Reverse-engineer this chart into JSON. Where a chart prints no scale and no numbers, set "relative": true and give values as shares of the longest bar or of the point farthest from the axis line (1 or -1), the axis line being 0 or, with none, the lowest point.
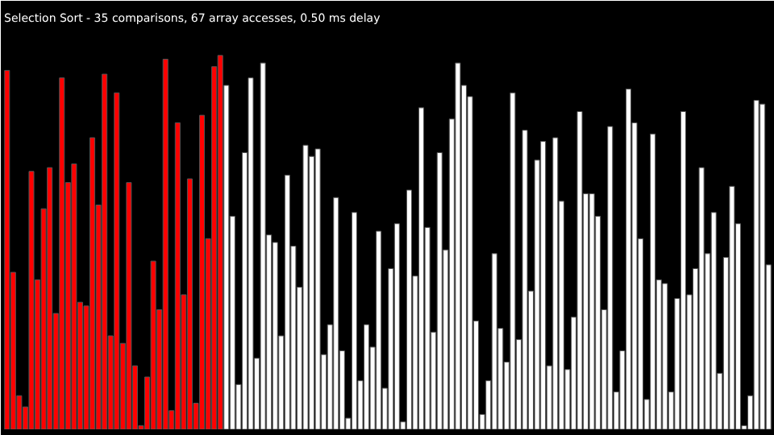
{
  "chart_data": {
    "type": "bar",
    "title": "Selection Sort - 35 comparisons, 67 array accesses, 0.50 ms delay",
    "relative": true,
    "categories": [
      null,
      null,
      null,
      null,
      null,
      null,
      null,
      null,
      null,
      null,
      null,
      null,
      null,
      null,
      null,
      null,
      null,
      null,
      null,
      null,
      null,
      null,
      null,
      null,
      null,
      null,
      null,
      null,
      null,
      null,
      null,
      null,
      null,
      null,
      null,
      null,
      null,
      null,
      null,
      null,
      null,
      null,
      null,
      null,
      null,
      null,
      null,
      null,
      null,
      null,
      null,
      null,
      null,
      null,
      null,
      null,
      null,
      null,
      null,
      null,
      null,
      null,
      null,
      null,
      null,
      null,
      null,
      null,
      null,
      null,
      null,
      null,
      null,
      null,
      null,
      null,
      null,
      null,
      null,
      null,
      null,
      null,
      null,
      null,
      null,
      null,
      null,
      null,
      null,
      null,
      null,
      null,
      null,
      null,
      null,
      null,
      null,
      null,
      null,
      null,
      null,
      null,
      null,
      null,
      null,
      null,
      null,
      null,
      null,
      null,
      null,
      null,
      null,
      null,
      null,
      null,
      null,
      null,
      null,
      null,
      null,
      null,
      null,
      null,
      null,
      null
    ],
    "values": [
      0.96,
      0.42,
      0.09,
      0.06,
      0.69,
      0.4,
      0.59,
      0.7,
      0.31,
      0.94,
      0.66,
      0.71,
      0.34,
      0.33,
      0.78,
      0.6,
      0.95,
      0.25,
      0.9,
      0.23,
      0.66,
      0.17,
      0.01,
      0.14,
      0.45,
      0.32,
      0.99,
      0.05,
      0.82,
      0.36,
      0.67,
      0.07,
      0.84,
      0.51,
      0.97,
      1,
      0.92,
      0.57,
      0.12,
      0.74,
      0.94,
      0.19,
      0.98,
      0.52,
      0.5,
      0.25,
      0.68,
      0.49,
      0.38,
      0.76,
      0.73,
      0.75,
      0.2,
      0.28,
      0.62,
      0.21,
      0.03,
      0.58,
      0.13,
      0.28,
      0.22,
      0.53,
      0.11,
      0.43,
      0.55,
      0.02,
      0.64,
      0.41,
      0.86,
      0.54,
      0.26,
      0.74,
      0.48,
      0.83,
      0.98,
      0.92,
      0.89,
      0.29,
      0.04,
      0.13,
      0.47,
      0.27,
      0.18,
      0.9,
      0.24,
      0.8,
      0.37,
      0.72,
      0.77,
      0.17,
      0.78,
      0.61,
      0.16,
      0.3,
      0.85,
      0.63,
      0.63,
      0.57,
      0.32,
      0.81,
      0.1,
      0.21,
      0.91,
      0.82,
      0.51,
      0.08,
      0.79,
      0.4,
      0.39,
      0.1,
      0.35,
      0.85,
      0.36,
      0.43,
      0.7,
      0.47,
      0.58,
      0.15,
      0.46,
      0.65,
      0.55,
      0.01,
      0.09,
      0.88,
      0.87,
      0.44
    ],
    "colors": [
      "#ff0000",
      "#ff0000",
      "#ff0000",
      "#ff0000",
      "#ff0000",
      "#ff0000",
      "#ff0000",
      "#ff0000",
      "#ff0000",
      "#ff0000",
      "#ff0000",
      "#ff0000",
      "#ff0000",
      "#ff0000",
      "#ff0000",
      "#ff0000",
      "#ff0000",
      "#ff0000",
      "#ff0000",
      "#ff0000",
      "#ff0000",
      "#ff0000",
      "#ff0000",
      "#ff0000",
      "#ff0000",
      "#ff0000",
      "#ff0000",
      "#ff0000",
      "#ff0000",
      "#ff0000",
      "#ff0000",
      "#ff0000",
      "#ff0000",
      "#ff0000",
      "#ff0000",
      "#ff0000",
      "#ffffff",
      "#ffffff",
      "#ffffff",
      "#ffffff",
      "#ffffff",
      "#ffffff",
      "#ffffff",
      "#ffffff",
      "#ffffff",
      "#ffffff",
      "#ffffff",
      "#ffffff",
      "#ffffff",
      "#ffffff",
      "#ffffff",
      "#ffffff",
      "#ffffff",
      "#ffffff",
      "#ffffff",
      "#ffffff",
      "#ffffff",
      "#ffffff",
      "#ffffff",
      "#ffffff",
      "#ffffff",
      "#ffffff",
      "#ffffff",
      "#ffffff",
      "#ffffff",
      "#ffffff",
      "#ffffff",
      "#ffffff",
      "#ffffff",
      "#ffffff",
      "#ffffff",
      "#ffffff",
      "#ffffff",
      "#ffffff",
      "#ffffff",
      "#ffffff",
      "#ffffff",
      "#ffffff",
      "#ffffff",
      "#ffffff",
      "#ffffff",
      "#ffffff",
      "#ffffff",
      "#ffffff",
      "#ffffff",
      "#ffffff",
      "#ffffff",
      "#ffffff",
      "#ffffff",
      "#ffffff",
      "#ffffff",
      "#ffffff",
      "#ffffff",
      "#ffffff",
      "#ffffff",
      "#ffffff",
      "#ffffff",
      "#ffffff",
      "#ffffff",
      "#ffffff",
      "#ffffff",
      "#ffffff",
      "#ffffff",
      "#ffffff",
      "#ffffff",
      "#ffffff",
      "#ffffff",
      "#ffffff",
      "#ffffff",
      "#ffffff",
      "#ffffff",
      "#ffffff",
      "#ffffff",
      "#ffffff",
      "#ffffff",
      "#ffffff",
      "#ffffff",
      "#ffffff",
      "#ffffff",
      "#ffffff",
      "#ffffff",
      "#ffffff",
      "#ffffff",
      "#ffffff",
      "#ffffff",
      "#ffffff"
    ]
  }
}
